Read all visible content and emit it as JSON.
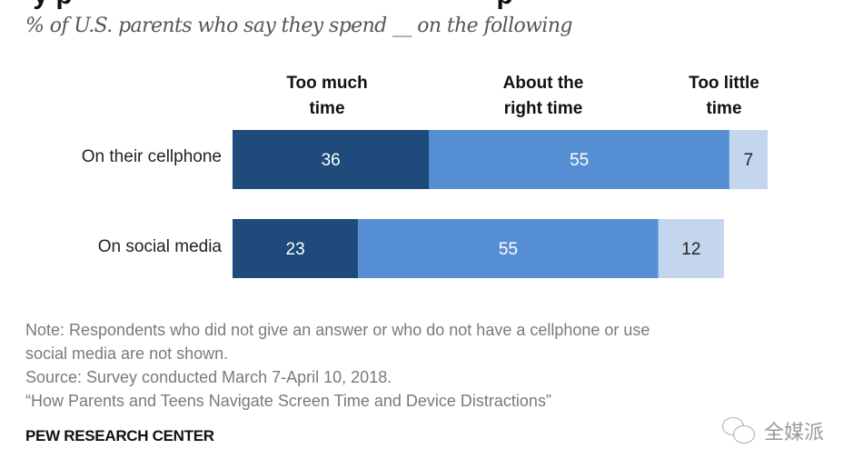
{
  "subtitle": "% of U.S. parents who say they spend __ on the following",
  "chart_data": {
    "type": "bar",
    "orientation": "horizontal",
    "stacked": true,
    "title": "",
    "subtitle": "% of U.S. parents who say they spend __ on the following",
    "categories": [
      "On their cellphone",
      "On social media"
    ],
    "series": [
      {
        "name": "Too much time",
        "values": [
          36,
          23
        ],
        "color": "#1f4a7c",
        "label_color": "#ffffff"
      },
      {
        "name": "About the right time",
        "values": [
          55,
          55
        ],
        "color": "#568ed4",
        "label_color": "#ffffff"
      },
      {
        "name": "Too little time",
        "values": [
          7,
          12
        ],
        "color": "#c4d6ee",
        "label_color": "#222222"
      }
    ],
    "xlabel": "",
    "ylabel": "",
    "xlim": [
      0,
      100
    ],
    "grid": false,
    "legend": "column headers above bars"
  },
  "column_headers": [
    {
      "line1": "Too much",
      "line2": "time"
    },
    {
      "line1": "About the",
      "line2": "right time"
    },
    {
      "line1": "Too little",
      "line2": "time"
    }
  ],
  "notes": {
    "note_line1": "Note: Respondents who did not give an answer or who do not have a cellphone or use",
    "note_line2": "social media are not shown.",
    "source": "Source: Survey conducted March 7-April 10, 2018.",
    "report": "“How Parents and Teens Navigate Screen Time and Device Distractions”"
  },
  "brand": "PEW RESEARCH CENTER",
  "watermark": {
    "text": "全媒派",
    "icon": "wechat-icon"
  }
}
